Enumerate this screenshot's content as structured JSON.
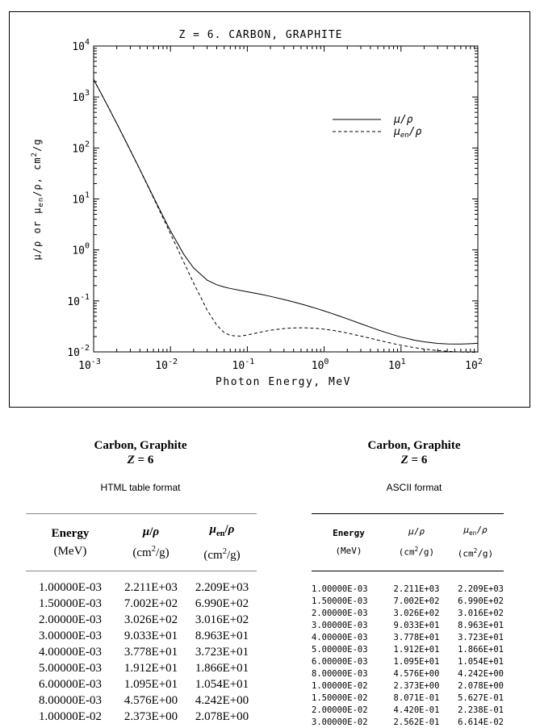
{
  "chart_data": {
    "type": "line",
    "title": "Z =  6.  CARBON, GRAPHITE",
    "xlabel": "Photon Energy, MeV",
    "ylabel": "μ/ρ  or  μen/ρ,  cm2/g",
    "x_scale": "log",
    "y_scale": "log",
    "xlim": [
      0.001,
      100
    ],
    "ylim": [
      0.01,
      10000
    ],
    "x_ticks": [
      {
        "base": "10",
        "exp": "-3"
      },
      {
        "base": "10",
        "exp": "-2"
      },
      {
        "base": "10",
        "exp": "-1"
      },
      {
        "base": "10",
        "exp": "0"
      },
      {
        "base": "10",
        "exp": "1"
      },
      {
        "base": "10",
        "exp": "2"
      }
    ],
    "y_ticks": [
      {
        "base": "10",
        "exp": "-2"
      },
      {
        "base": "10",
        "exp": "-1"
      },
      {
        "base": "10",
        "exp": "0"
      },
      {
        "base": "10",
        "exp": "1"
      },
      {
        "base": "10",
        "exp": "2"
      },
      {
        "base": "10",
        "exp": "3"
      },
      {
        "base": "10",
        "exp": "4"
      }
    ],
    "legend_position": "upper-right",
    "series": [
      {
        "name": "μ/ρ",
        "style": "solid",
        "x": [
          0.001,
          0.0015,
          0.002,
          0.003,
          0.004,
          0.005,
          0.006,
          0.008,
          0.01,
          0.015,
          0.02,
          0.03,
          0.04,
          0.05,
          0.06,
          0.08,
          0.1,
          0.15,
          0.2,
          0.3,
          0.4,
          0.5,
          0.6,
          0.8,
          1.0,
          1.25,
          1.5,
          2.0,
          3.0,
          4.0,
          5.0,
          6.0,
          8.0,
          10.0,
          15.0,
          20.0,
          30.0,
          40.0,
          50.0,
          60.0,
          80.0,
          100.0
        ],
        "y": [
          2211,
          700.2,
          302.6,
          90.33,
          37.78,
          19.12,
          10.95,
          4.576,
          2.373,
          0.8071,
          0.442,
          0.2562,
          0.2076,
          0.1871,
          0.1753,
          0.161,
          0.1514,
          0.1347,
          0.1229,
          0.1066,
          0.09546,
          0.08715,
          0.08058,
          0.07076,
          0.06361,
          0.0569,
          0.05179,
          0.04442,
          0.03562,
          0.03047,
          0.02708,
          0.02469,
          0.02154,
          0.01959,
          0.01698,
          0.01575,
          0.01468,
          0.01434,
          0.01427,
          0.0143,
          0.01448,
          0.0147
        ]
      },
      {
        "name": "μen/ρ",
        "style": "dashed",
        "x": [
          0.001,
          0.0015,
          0.002,
          0.003,
          0.004,
          0.005,
          0.006,
          0.008,
          0.01,
          0.015,
          0.02,
          0.03,
          0.04,
          0.05,
          0.06,
          0.08,
          0.1,
          0.15,
          0.2,
          0.3,
          0.4,
          0.5,
          0.6,
          0.8,
          1.0,
          1.25,
          1.5,
          2.0,
          3.0,
          4.0,
          5.0,
          6.0,
          8.0,
          10.0,
          15.0,
          20.0,
          30.0,
          40.0,
          50.0,
          60.0,
          80.0,
          100.0
        ],
        "y": [
          2209,
          699.0,
          301.6,
          89.63,
          37.23,
          18.66,
          10.54,
          4.242,
          2.078,
          0.5627,
          0.2238,
          0.06614,
          0.03343,
          0.02397,
          0.02098,
          0.02037,
          0.02147,
          0.02449,
          0.02655,
          0.0287,
          0.0295,
          0.02969,
          0.02956,
          0.02885,
          0.02792,
          0.02669,
          0.0255,
          0.02343,
          0.02046,
          0.01847,
          0.01704,
          0.01598,
          0.0145,
          0.01353,
          0.01212,
          0.01138,
          0.01063,
          0.01028,
          0.01008,
          0.00996,
          0.00985,
          0.00981
        ]
      }
    ]
  },
  "left_panel": {
    "title": "Carbon, Graphite",
    "z_label": "Z = 6",
    "format": "HTML table format",
    "headers": {
      "energy": "Energy",
      "energy_unit": "(MeV)",
      "mu": "μ/ρ",
      "mu_unit": "(cm²/g)",
      "muen": "μen/ρ",
      "muen_unit": "(cm²/g)"
    },
    "rows": [
      [
        "1.00000E-03",
        "2.211E+03",
        "2.209E+03"
      ],
      [
        "1.50000E-03",
        "7.002E+02",
        "6.990E+02"
      ],
      [
        "2.00000E-03",
        "3.026E+02",
        "3.016E+02"
      ],
      [
        "3.00000E-03",
        "9.033E+01",
        "8.963E+01"
      ],
      [
        "4.00000E-03",
        "3.778E+01",
        "3.723E+01"
      ],
      [
        "5.00000E-03",
        "1.912E+01",
        "1.866E+01"
      ],
      [
        "6.00000E-03",
        "1.095E+01",
        "1.054E+01"
      ],
      [
        "8.00000E-03",
        "4.576E+00",
        "4.242E+00"
      ],
      [
        "1.00000E-02",
        "2.373E+00",
        "2.078E+00"
      ]
    ]
  },
  "right_panel": {
    "title": "Carbon, Graphite",
    "z_label": "Z = 6",
    "format": "ASCII format",
    "headers": {
      "energy": "Energy",
      "energy_unit": "(MeV)",
      "mu": "μ/ρ",
      "mu_unit": "(cm²/g)",
      "muen": "μen/ρ",
      "muen_unit": "(cm²/g)"
    },
    "rows": [
      [
        "1.00000E-03",
        "2.211E+03",
        "2.209E+03"
      ],
      [
        "1.50000E-03",
        "7.002E+02",
        "6.990E+02"
      ],
      [
        "2.00000E-03",
        "3.026E+02",
        "3.016E+02"
      ],
      [
        "3.00000E-03",
        "9.033E+01",
        "8.963E+01"
      ],
      [
        "4.00000E-03",
        "3.778E+01",
        "3.723E+01"
      ],
      [
        "5.00000E-03",
        "1.912E+01",
        "1.866E+01"
      ],
      [
        "6.00000E-03",
        "1.095E+01",
        "1.054E+01"
      ],
      [
        "8.00000E-03",
        "4.576E+00",
        "4.242E+00"
      ],
      [
        "1.00000E-02",
        "2.373E+00",
        "2.078E+00"
      ],
      [
        "1.50000E-02",
        "8.071E-01",
        "5.627E-01"
      ],
      [
        "2.00000E-02",
        "4.420E-01",
        "2.238E-01"
      ],
      [
        "3.00000E-02",
        "2.562E-01",
        "6.614E-02"
      ]
    ]
  }
}
